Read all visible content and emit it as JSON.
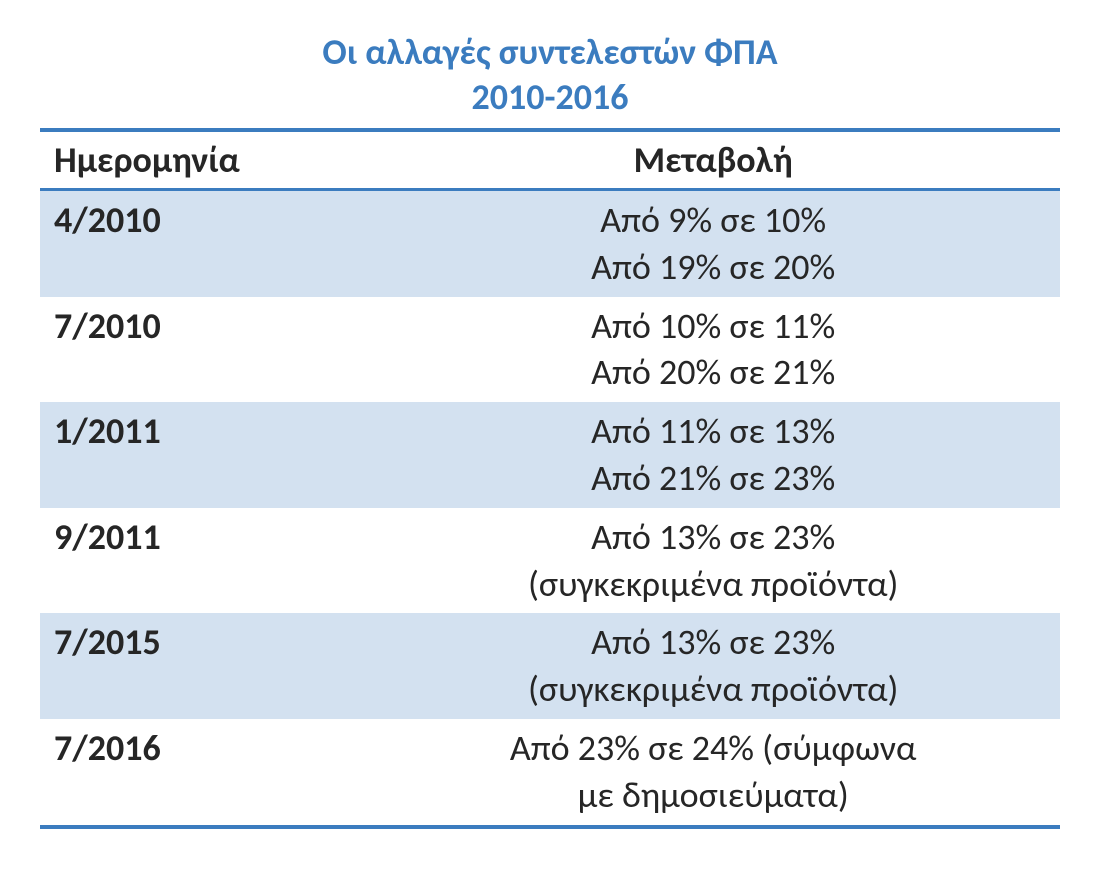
{
  "title_line1": "Οι αλλαγές συντελεστών ΦΠΑ",
  "title_line2": "2010-2016",
  "columns": [
    "Ημερομηνία",
    "Μεταβολή"
  ],
  "rows": [
    {
      "date": "4/2010",
      "lines": [
        "Από 9% σε 10%",
        "Από 19% σε 20%"
      ]
    },
    {
      "date": "7/2010",
      "lines": [
        "Από 10% σε 11%",
        "Από 20% σε 21%"
      ]
    },
    {
      "date": "1/2011",
      "lines": [
        "Από 11% σε 13%",
        "Από 21% σε 23%"
      ]
    },
    {
      "date": "9/2011",
      "lines": [
        "Από 13% σε 23%",
        "(συγκεκριμένα προϊόντα)"
      ]
    },
    {
      "date": "7/2015",
      "lines": [
        "Από 13% σε 23%",
        "(συγκεκριμένα προϊόντα)"
      ]
    },
    {
      "date": "7/2016",
      "lines": [
        "Από 23% σε 24% (σύμφωνα",
        "με δημοσιεύματα)"
      ]
    }
  ],
  "style": {
    "title_color": "#3b7cbf",
    "border_color": "#3b7cbf",
    "shaded_row_bg": "#d3e1f0",
    "text_color": "#262626",
    "background_color": "#ffffff",
    "title_fontsize": 36,
    "body_fontsize": 36,
    "font_family": "Calibri, Arial, sans-serif"
  }
}
